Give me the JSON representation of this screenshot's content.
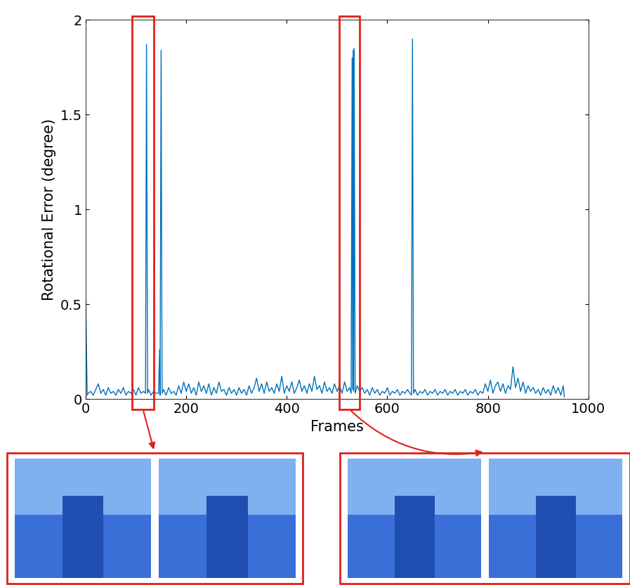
{
  "chart_data": {
    "type": "line",
    "x_label": "Frames",
    "y_label": "Rotational Error (degree)",
    "color": "#0072bd",
    "xlim": [
      0,
      1000
    ],
    "xticks": [
      0,
      200,
      400,
      600,
      800,
      1000
    ],
    "ylim": [
      0,
      2
    ],
    "yticks": [
      0,
      0.5,
      1,
      1.5,
      2
    ],
    "grid": false,
    "x": [
      0,
      3,
      5,
      10,
      15,
      20,
      25,
      30,
      35,
      40,
      45,
      50,
      55,
      60,
      65,
      70,
      75,
      80,
      85,
      90,
      95,
      100,
      105,
      110,
      115,
      119,
      121,
      123,
      125,
      130,
      135,
      140,
      145,
      147,
      148,
      150,
      152,
      155,
      160,
      165,
      170,
      175,
      180,
      185,
      190,
      195,
      200,
      205,
      210,
      215,
      220,
      225,
      230,
      235,
      240,
      245,
      250,
      255,
      260,
      265,
      270,
      275,
      280,
      285,
      290,
      295,
      300,
      305,
      310,
      315,
      320,
      325,
      330,
      335,
      340,
      345,
      350,
      355,
      360,
      365,
      370,
      375,
      380,
      385,
      390,
      395,
      400,
      405,
      410,
      415,
      420,
      425,
      430,
      435,
      440,
      445,
      450,
      455,
      460,
      465,
      470,
      475,
      480,
      485,
      490,
      495,
      500,
      505,
      510,
      515,
      520,
      525,
      528,
      530,
      531,
      532,
      533,
      534,
      536,
      540,
      545,
      550,
      555,
      560,
      565,
      570,
      575,
      580,
      585,
      590,
      595,
      600,
      605,
      610,
      615,
      620,
      625,
      630,
      635,
      640,
      645,
      648,
      650,
      652,
      655,
      660,
      665,
      670,
      675,
      680,
      685,
      690,
      695,
      700,
      705,
      710,
      715,
      720,
      725,
      730,
      735,
      740,
      745,
      750,
      755,
      760,
      765,
      770,
      775,
      780,
      785,
      790,
      795,
      800,
      805,
      810,
      815,
      820,
      825,
      830,
      835,
      840,
      845,
      850,
      855,
      860,
      865,
      870,
      875,
      880,
      885,
      890,
      895,
      900,
      905,
      910,
      915,
      920,
      925,
      930,
      935,
      940,
      945,
      950,
      952
    ],
    "values": [
      0.52,
      0.02,
      0.03,
      0.04,
      0.02,
      0.05,
      0.08,
      0.03,
      0.05,
      0.02,
      0.06,
      0.03,
      0.04,
      0.02,
      0.05,
      0.03,
      0.06,
      0.02,
      0.04,
      0.03,
      0.05,
      0.02,
      0.06,
      0.03,
      0.04,
      0.03,
      1.87,
      0.03,
      0.05,
      0.02,
      0.04,
      0.03,
      0.03,
      0.26,
      0.02,
      1.84,
      0.03,
      0.05,
      0.02,
      0.06,
      0.03,
      0.04,
      0.02,
      0.07,
      0.03,
      0.09,
      0.04,
      0.08,
      0.03,
      0.06,
      0.02,
      0.09,
      0.04,
      0.07,
      0.03,
      0.08,
      0.02,
      0.06,
      0.03,
      0.09,
      0.04,
      0.05,
      0.02,
      0.06,
      0.03,
      0.05,
      0.02,
      0.06,
      0.03,
      0.05,
      0.02,
      0.07,
      0.03,
      0.06,
      0.11,
      0.04,
      0.08,
      0.03,
      0.09,
      0.04,
      0.06,
      0.03,
      0.08,
      0.04,
      0.12,
      0.03,
      0.07,
      0.04,
      0.09,
      0.03,
      0.06,
      0.1,
      0.04,
      0.07,
      0.03,
      0.08,
      0.04,
      0.12,
      0.05,
      0.07,
      0.03,
      0.09,
      0.04,
      0.06,
      0.03,
      0.08,
      0.04,
      0.07,
      0.03,
      0.09,
      0.04,
      0.06,
      0.03,
      1.8,
      0.05,
      1.84,
      0.04,
      1.85,
      0.03,
      0.07,
      0.04,
      0.06,
      0.03,
      0.05,
      0.02,
      0.06,
      0.03,
      0.05,
      0.02,
      0.04,
      0.03,
      0.06,
      0.02,
      0.04,
      0.03,
      0.05,
      0.02,
      0.04,
      0.03,
      0.05,
      0.03,
      0.02,
      1.9,
      0.03,
      0.05,
      0.02,
      0.04,
      0.03,
      0.05,
      0.02,
      0.04,
      0.03,
      0.05,
      0.02,
      0.04,
      0.03,
      0.05,
      0.02,
      0.04,
      0.03,
      0.05,
      0.02,
      0.04,
      0.03,
      0.05,
      0.02,
      0.04,
      0.03,
      0.05,
      0.02,
      0.04,
      0.03,
      0.08,
      0.04,
      0.1,
      0.03,
      0.07,
      0.09,
      0.04,
      0.08,
      0.03,
      0.07,
      0.05,
      0.17,
      0.06,
      0.11,
      0.04,
      0.09,
      0.03,
      0.07,
      0.04,
      0.06,
      0.03,
      0.05,
      0.02,
      0.06,
      0.03,
      0.05,
      0.02,
      0.07,
      0.03,
      0.06,
      0.02,
      0.07,
      0.01
    ]
  }
}
